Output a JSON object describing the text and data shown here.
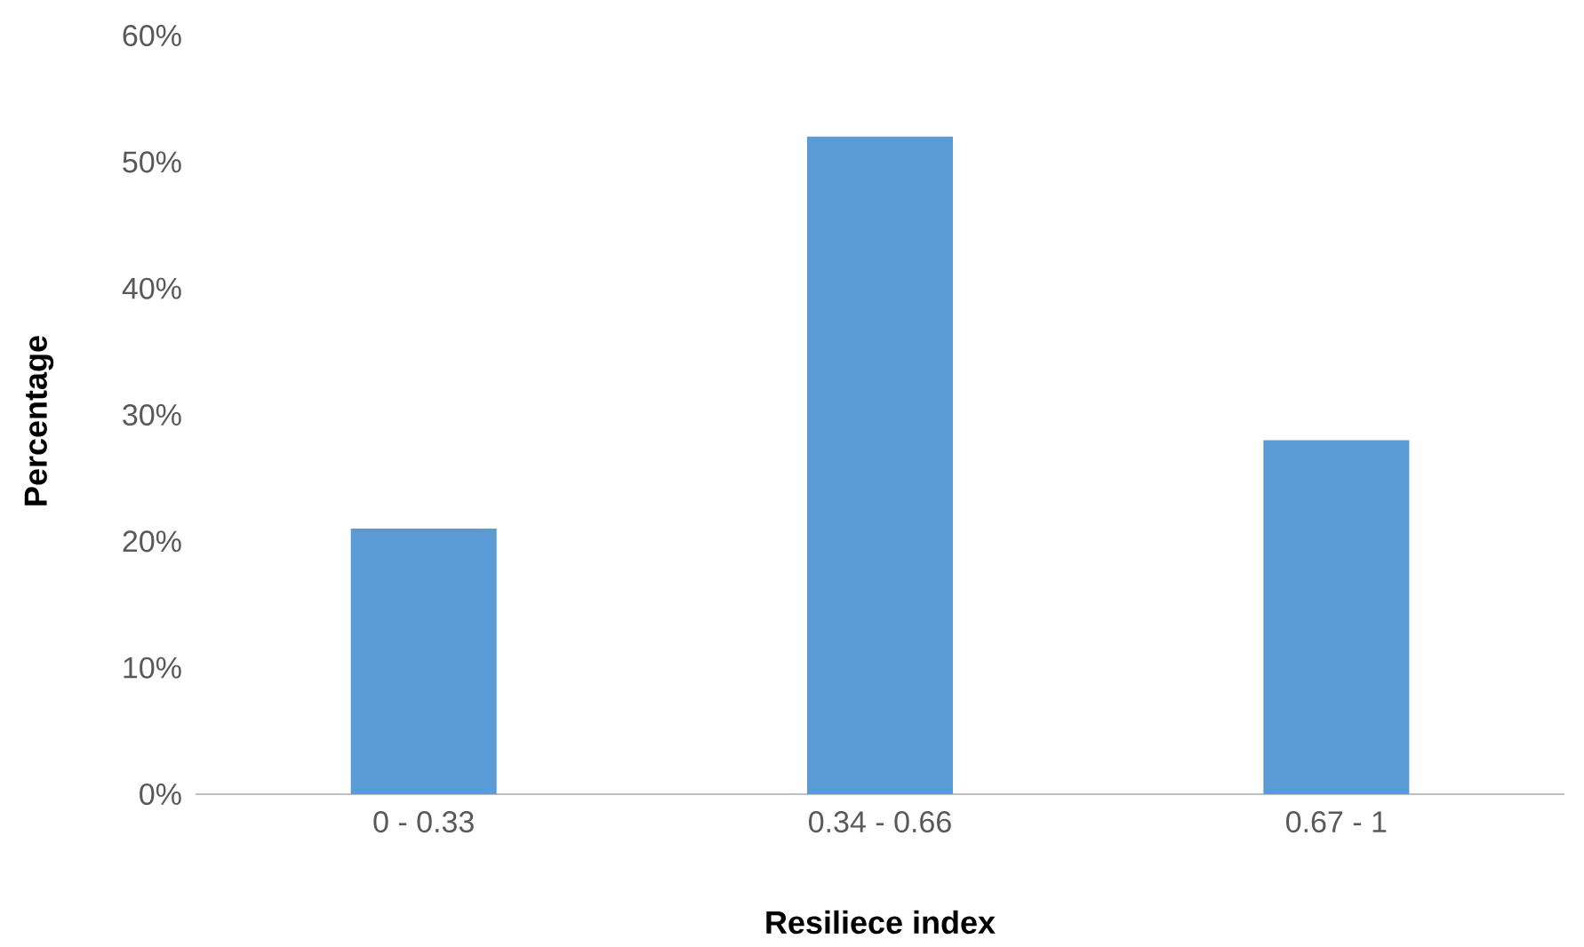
{
  "chart_data": {
    "type": "bar",
    "xlabel": "Resiliece index",
    "ylabel": "Percentage",
    "categories": [
      "0 - 0.33",
      "0.34 - 0.66",
      "0.67 - 1"
    ],
    "values": [
      21,
      52,
      28
    ],
    "color": "#5b9bd5",
    "ylim": [
      0,
      60
    ],
    "yticks": [
      {
        "value": 0,
        "label": "0%"
      },
      {
        "value": 10,
        "label": "10%"
      },
      {
        "value": 20,
        "label": "20%"
      },
      {
        "value": 30,
        "label": "30%"
      },
      {
        "value": 40,
        "label": "40%"
      },
      {
        "value": 50,
        "label": "50%"
      },
      {
        "value": 60,
        "label": "60%"
      }
    ]
  }
}
